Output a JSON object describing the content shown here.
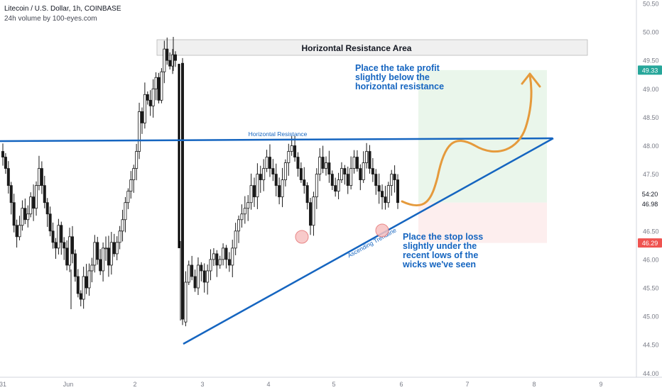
{
  "header": {
    "title": "Litecoin / U.S. Dollar, 1h, COINBASE",
    "subtitle": "24h volume by 100-eyes.com"
  },
  "colors": {
    "candle_up": "#4d4d4d",
    "candle_down": "#1a1a1a",
    "trendline": "#1565c0",
    "resistance_line": "#1565c0",
    "projection": "#e59a3c",
    "target_zone": "#e8f5e9",
    "stop_zone": "#fdecec",
    "take_profit_label": "#26a69a",
    "stop_loss_label": "#ef5350",
    "axis_text": "#787b86"
  },
  "chart_data": {
    "type": "candlestick",
    "symbol": "Litecoin / U.S. Dollar",
    "interval": "1h",
    "exchange": "COINBASE",
    "y_axis": {
      "position": "right",
      "ticks": [
        "50.50",
        "50.00",
        "49.50",
        "49.00",
        "48.50",
        "48.00",
        "47.50",
        "47.00",
        "46.50",
        "46.00",
        "45.50",
        "45.00",
        "44.50",
        "44.00"
      ],
      "ylim": [
        44.0,
        50.5
      ]
    },
    "x_axis": {
      "ticks": [
        "31",
        "Jun",
        "2",
        "3",
        "4",
        "5",
        "6",
        "7",
        "8",
        "9"
      ]
    },
    "price_labels": {
      "take_profit": "49.33",
      "current_time": "54:20",
      "current_price": "46.98",
      "stop_loss": "46.29"
    },
    "annotations": {
      "zone_label": "Horizontal Resistance Area",
      "resistance_label": "Horizontal Resistance",
      "trendline_label": "Ascending Trendline",
      "take_profit_note": [
        "Place the take profit",
        "slightly below the",
        "horizontal resistance"
      ],
      "stop_loss_note": [
        "Place the stop loss",
        "slightly under the",
        "recent lows of the",
        "wicks we've seen"
      ]
    },
    "levels": {
      "resistance_zone": [
        49.58,
        49.88
      ],
      "horizontal_resistance": 48.08,
      "take_profit": 49.33,
      "entry": 47.0,
      "stop_loss": 46.29
    },
    "candles_close_approx": [
      47.8,
      47.6,
      47.3,
      47.0,
      46.6,
      46.4,
      46.6,
      46.9,
      46.7,
      46.8,
      47.1,
      46.9,
      47.3,
      47.6,
      47.3,
      47.0,
      46.8,
      46.5,
      46.3,
      46.2,
      46.6,
      46.3,
      46.2,
      45.9,
      46.4,
      46.1,
      45.7,
      45.4,
      45.3,
      45.7,
      45.5,
      45.8,
      45.9,
      46.3,
      46.0,
      45.8,
      46.2,
      46.2,
      45.9,
      46.3,
      46.1,
      46.3,
      46.5,
      46.7,
      47.0,
      47.2,
      47.4,
      47.6,
      47.9,
      48.6,
      48.4,
      48.9,
      48.8,
      48.7,
      49.0,
      49.2,
      48.8,
      49.3,
      49.7,
      49.5,
      49.4,
      49.6,
      49.5,
      44.9,
      45.6,
      45.9,
      45.7,
      45.5,
      45.9,
      45.8,
      45.6,
      45.8,
      46.0,
      46.1,
      45.9,
      46.0,
      46.2,
      46.0,
      45.9,
      46.2,
      46.5,
      46.7,
      46.8,
      46.9,
      47.0,
      47.3,
      47.1,
      47.5,
      47.4,
      47.6,
      47.8,
      47.6,
      47.5,
      47.3,
      47.1,
      47.4,
      47.7,
      47.9,
      48.0,
      47.8,
      47.6,
      47.4,
      47.3,
      47.0,
      46.6,
      47.1,
      47.5,
      47.8,
      47.6,
      47.7,
      47.5,
      47.3,
      47.2,
      47.4,
      47.6,
      47.5,
      47.3,
      47.6,
      47.8,
      47.6,
      47.4,
      47.7,
      47.9,
      47.6,
      47.5,
      47.3,
      47.2,
      47.1,
      47.0,
      47.3,
      47.5,
      47.4,
      47.0
    ]
  }
}
